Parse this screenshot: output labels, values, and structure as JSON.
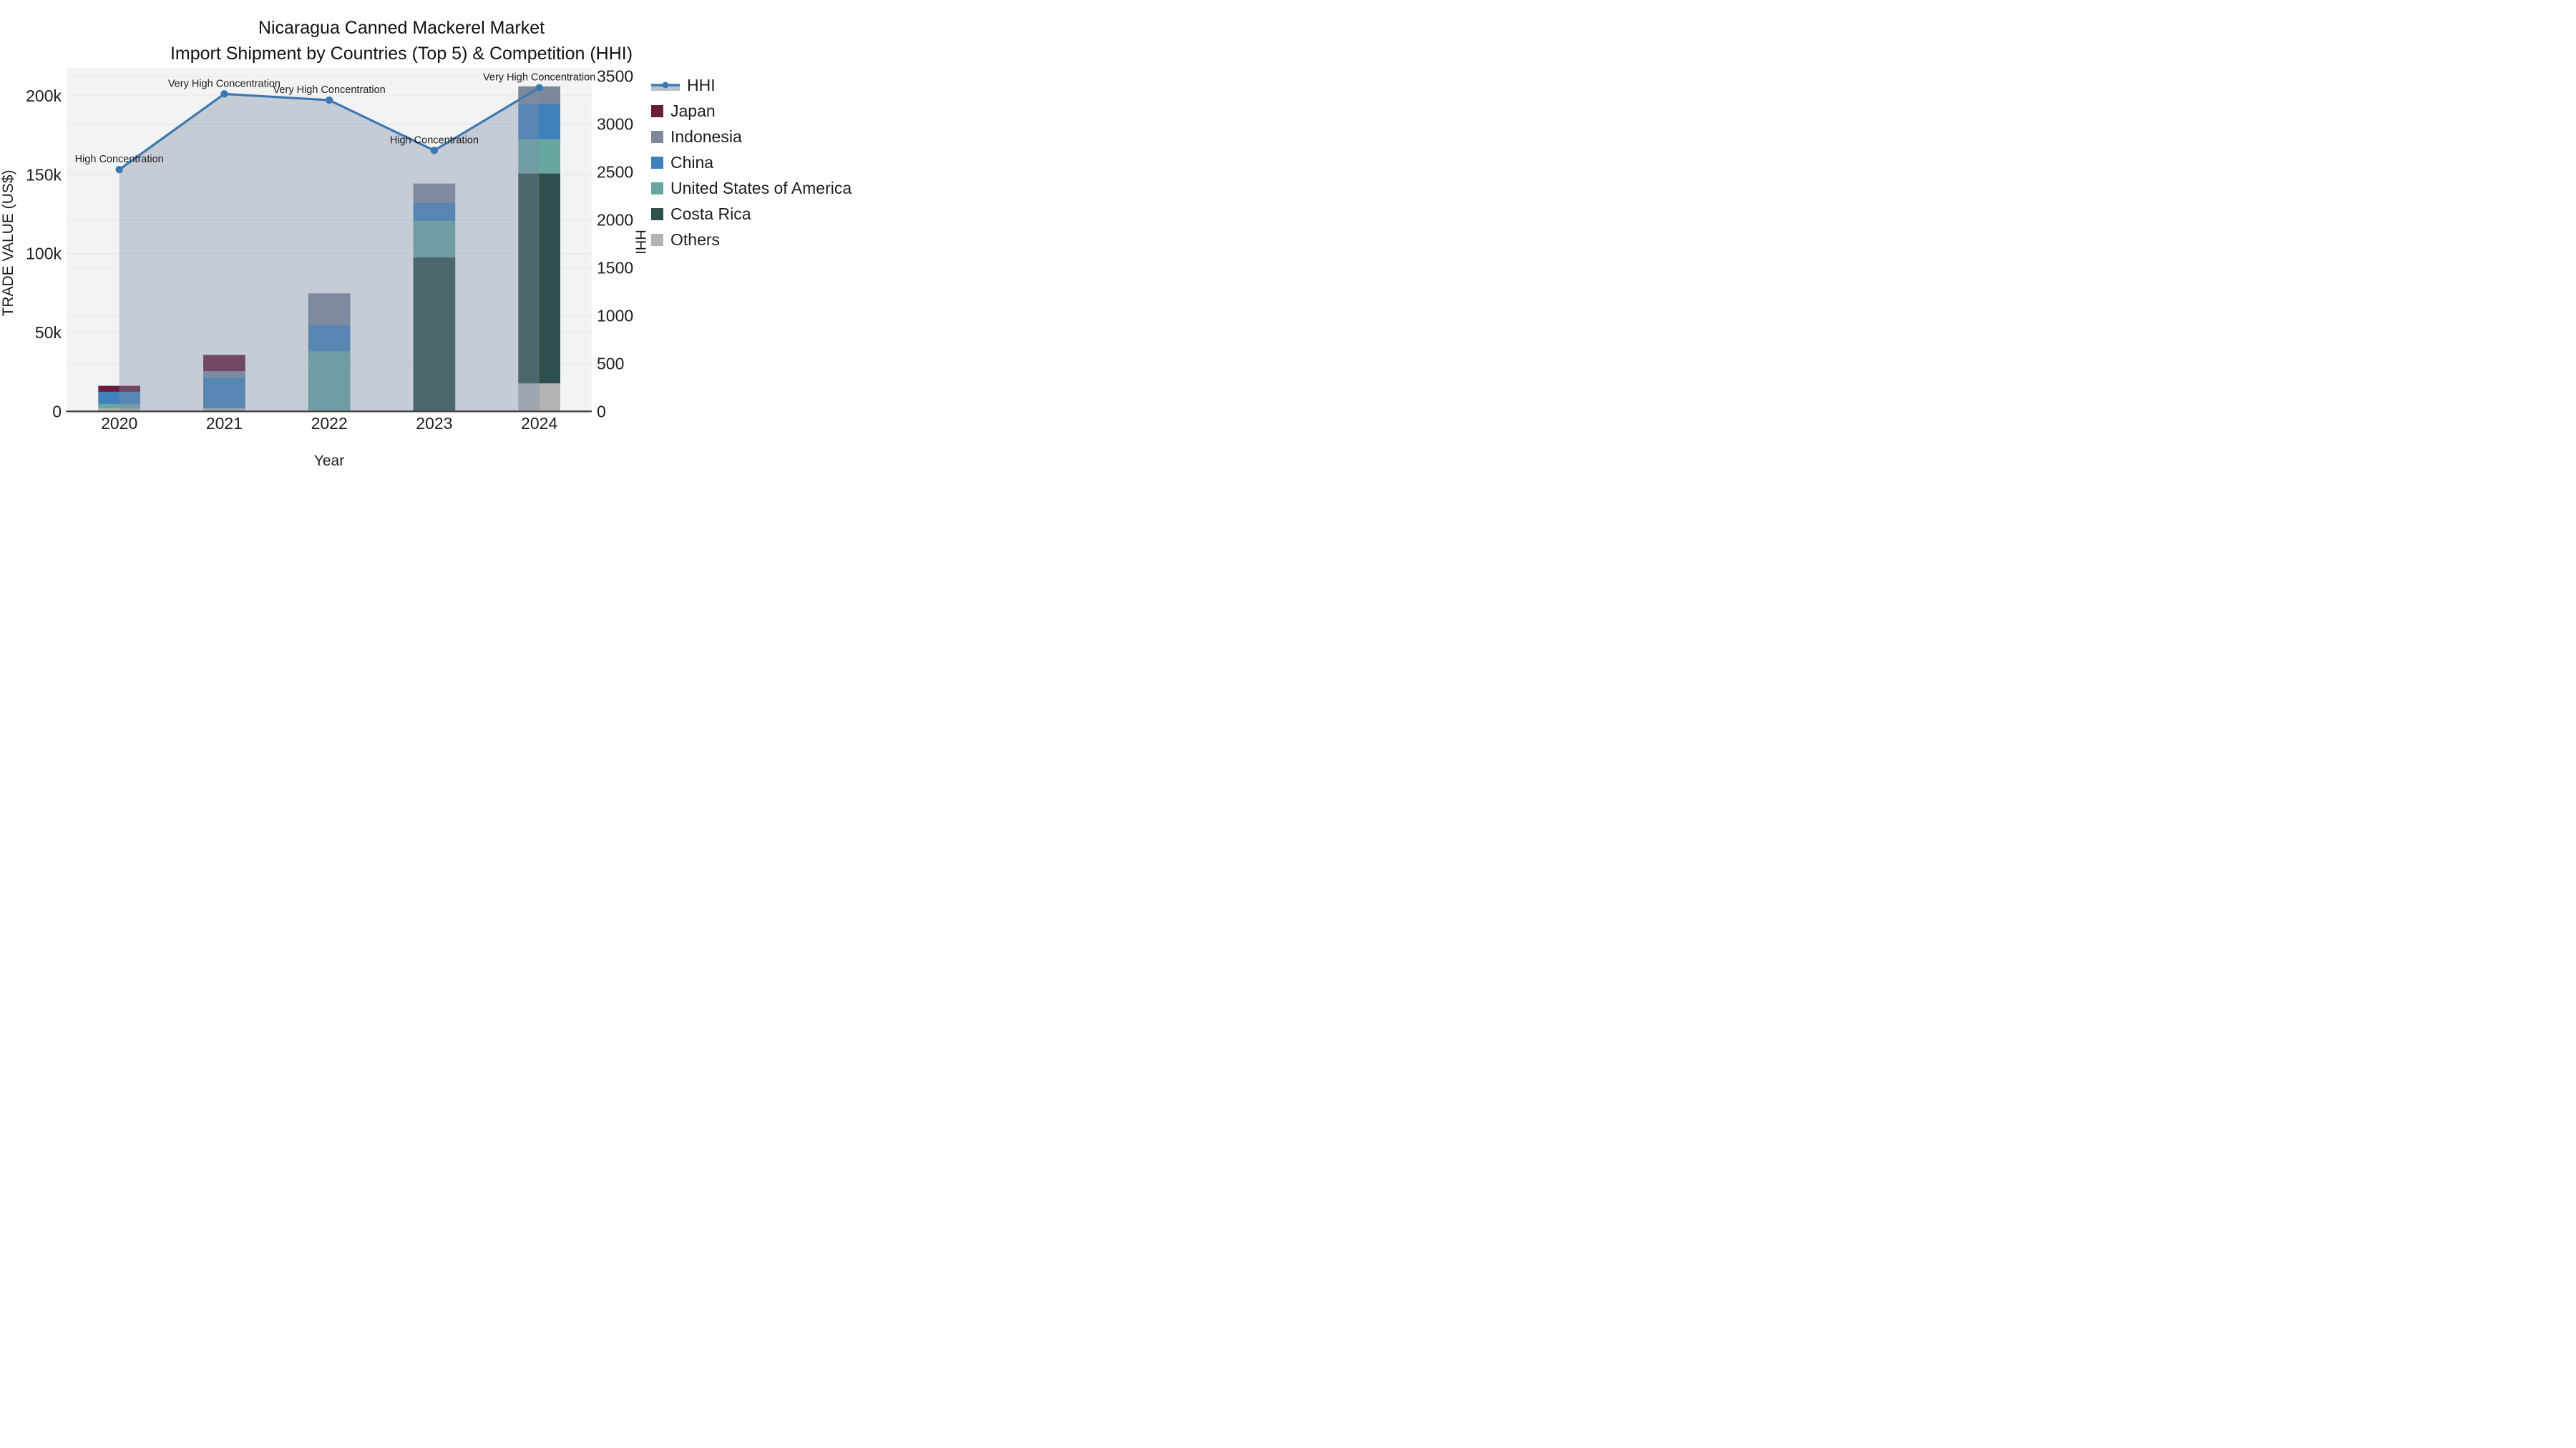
{
  "title": {
    "line1": "Nicaragua Canned Mackerel Market",
    "line2": "Import Shipment by Countries (Top 5) & Competition (HHI)"
  },
  "chart_data": {
    "type": "combo: stacked bar (trade value) + line/area (HHI)",
    "categories": [
      "2020",
      "2021",
      "2022",
      "2023",
      "2024"
    ],
    "xlabel": "Year",
    "y_left": {
      "label": "TRADE VALUE (US$)",
      "unit": "thousand US$",
      "ticks": [
        "0",
        "50k",
        "100k",
        "150k",
        "200k"
      ],
      "tick_values_k": [
        0,
        50,
        100,
        150,
        200
      ],
      "range_k": [
        0,
        217.5
      ],
      "grid": true
    },
    "y_right": {
      "label": "HHI",
      "ticks": [
        "0",
        "500",
        "1000",
        "1500",
        "2000",
        "2500",
        "3000",
        "3500"
      ],
      "tick_values": [
        0,
        500,
        1000,
        1500,
        2000,
        2500,
        3000,
        3500
      ],
      "range": [
        0,
        3585
      ],
      "grid": true
    },
    "bar_series": [
      {
        "name": "Japan",
        "color": "#6a1c3f",
        "values_k": [
          3.8,
          10.3,
          0,
          0,
          0
        ]
      },
      {
        "name": "Indonesia",
        "color": "#7c8799",
        "values_k": [
          0,
          3.9,
          20.1,
          12.2,
          11.0
        ]
      },
      {
        "name": "China",
        "color": "#4181bb",
        "values_k": [
          7.7,
          19.6,
          16.8,
          11.5,
          22.7
        ]
      },
      {
        "name": "United States of America",
        "color": "#67a7a2",
        "values_k": [
          2.9,
          0,
          37.9,
          23.1,
          21.5
        ]
      },
      {
        "name": "Costa Rica",
        "color": "#2f4f4c",
        "values_k": [
          0,
          0,
          0,
          97.6,
          133.1
        ]
      },
      {
        "name": "Others",
        "color": "#b3b3b3",
        "values_k": [
          1.8,
          2.0,
          0,
          0,
          17.7
        ]
      }
    ],
    "stack_order_bottom_to_top": [
      "Others",
      "Costa Rica",
      "United States of America",
      "China",
      "Indonesia",
      "Japan"
    ],
    "line_series": {
      "name": "HHI",
      "color": "#3e78b2",
      "area_fill": "rgba(125,142,166,0.38)",
      "values": [
        2525,
        3315,
        3250,
        2725,
        3380
      ]
    },
    "annotations": [
      {
        "category": "2020",
        "text": "High Concentration"
      },
      {
        "category": "2021",
        "text": "Very High Concentration"
      },
      {
        "category": "2022",
        "text": "Very High Concentration"
      },
      {
        "category": "2023",
        "text": "High Concentration"
      },
      {
        "category": "2024",
        "text": "Very High Concentration"
      }
    ],
    "legend_position": "right",
    "plot_background": "#f2f3f4",
    "grid_color": "#e4e6e9",
    "axis_line_color": "#444444"
  },
  "labels": {
    "xlabel": "Year",
    "ylabel_left": "TRADE VALUE (US$)",
    "ylabel_right": "HHI"
  }
}
